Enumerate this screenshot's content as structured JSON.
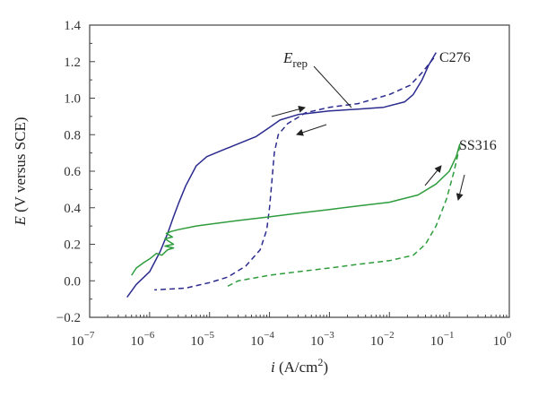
{
  "chart_data": {
    "type": "line",
    "xlabel": {
      "symbol": "i",
      "unit": " (A/cm",
      "sup": "2",
      "close": ")"
    },
    "ylabel": {
      "symbol": "E",
      "unit": " (V versus SCE)"
    },
    "xscale": "log",
    "xlim": [
      1e-07,
      1
    ],
    "ylim": [
      -0.2,
      1.4
    ],
    "x_ticks": [
      {
        "base": "10",
        "exp": "−7"
      },
      {
        "base": "10",
        "exp": "−6"
      },
      {
        "base": "10",
        "exp": "−5"
      },
      {
        "base": "10",
        "exp": "−4"
      },
      {
        "base": "10",
        "exp": "−3"
      },
      {
        "base": "10",
        "exp": "−2"
      },
      {
        "base": "10",
        "exp": "−1"
      },
      {
        "base": "10",
        "exp": "0"
      }
    ],
    "y_ticks": [
      "−0.2",
      "0.0",
      "0.2",
      "0.4",
      "0.6",
      "0.8",
      "1.0",
      "1.2",
      "1.4"
    ],
    "grid": false,
    "series": [
      {
        "name": "C276",
        "color": "#2b2b8f",
        "forward": {
          "x": [
            4.2e-07,
            6e-07,
            1e-06,
            1.5e-06,
            2e-06,
            2.5e-06,
            3e-06,
            4e-06,
            6e-06,
            9e-06,
            1.5e-05,
            3e-05,
            6e-05,
            0.0001,
            0.00015,
            0.0003,
            0.001,
            0.003,
            0.008,
            0.018,
            0.025,
            0.035,
            0.045,
            0.06
          ],
          "y": [
            -0.09,
            -0.02,
            0.05,
            0.16,
            0.26,
            0.35,
            0.42,
            0.52,
            0.63,
            0.68,
            0.71,
            0.75,
            0.79,
            0.84,
            0.88,
            0.91,
            0.93,
            0.94,
            0.95,
            0.98,
            1.02,
            1.1,
            1.18,
            1.25
          ]
        },
        "reverse": {
          "x": [
            0.055,
            0.035,
            0.022,
            0.01,
            0.003,
            0.001,
            0.0004,
            0.0002,
            0.00014,
            0.00012,
            0.00011,
            0.0001,
            9e-05,
            7e-05,
            4e-05,
            2e-05,
            1e-05,
            4e-06,
            1.2e-06
          ],
          "y": [
            1.22,
            1.14,
            1.07,
            1.02,
            0.97,
            0.95,
            0.92,
            0.86,
            0.8,
            0.7,
            0.55,
            0.4,
            0.28,
            0.17,
            0.08,
            0.02,
            -0.01,
            -0.04,
            -0.05
          ]
        }
      },
      {
        "name": "SS316",
        "color": "#2e9c3c",
        "forward": {
          "x": [
            5e-07,
            6e-07,
            8e-07,
            1e-06,
            1.3e-06,
            1.6e-06,
            2e-06,
            2.5e-06,
            1.8e-06,
            2.5e-06,
            1.8e-06,
            2.4e-06,
            1.9e-06,
            2.3e-06,
            3e-06,
            6e-06,
            1e-05,
            3e-05,
            0.0001,
            0.0003,
            0.001,
            0.003,
            0.01,
            0.03,
            0.06,
            0.1,
            0.13,
            0.15
          ],
          "y": [
            0.03,
            0.07,
            0.1,
            0.12,
            0.15,
            0.14,
            0.17,
            0.18,
            0.19,
            0.2,
            0.23,
            0.24,
            0.26,
            0.27,
            0.28,
            0.3,
            0.31,
            0.33,
            0.35,
            0.37,
            0.39,
            0.41,
            0.43,
            0.47,
            0.53,
            0.6,
            0.68,
            0.75
          ]
        },
        "reverse": {
          "x": [
            0.15,
            0.12,
            0.09,
            0.06,
            0.04,
            0.025,
            0.01,
            0.003,
            0.001,
            0.0003,
            0.0001,
            3e-05,
            2e-05
          ],
          "y": [
            0.74,
            0.6,
            0.45,
            0.3,
            0.2,
            0.14,
            0.11,
            0.09,
            0.07,
            0.05,
            0.03,
            0.0,
            -0.03
          ]
        }
      }
    ],
    "annotations": {
      "erep": {
        "symbol": "E",
        "sub": "rep"
      }
    }
  }
}
